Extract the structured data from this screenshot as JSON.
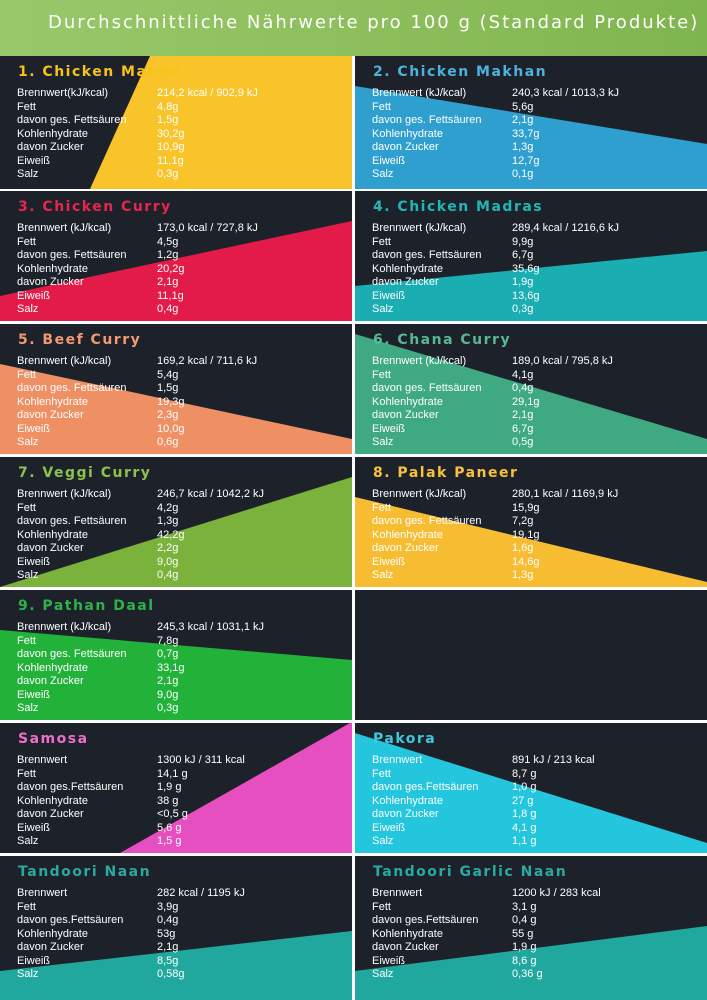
{
  "header": {
    "title": "Durchschnittliche Nährwerte pro 100 g  (Standard Produkte)",
    "color": "#8dbf5c"
  },
  "panels": [
    {
      "title": "1. Chicken Mango",
      "title_color": "#f6c21c",
      "accent_color": "#f8c42a",
      "rows": [
        {
          "label": "Brennwert(kJ/kcal)",
          "value": "214,2 kcal / 902,9 kJ"
        },
        {
          "label": "Fett",
          "value": "4,8g"
        },
        {
          "label": "davon ges. Fettsäuren",
          "value": "1,5g"
        },
        {
          "label": "Kohlenhydrate",
          "value": "30,2g"
        },
        {
          "label": "davon Zucker",
          "value": "10,9g"
        },
        {
          "label": "Eiweiß",
          "value": "11,1g"
        },
        {
          "label": "Salz",
          "value": "0,3g"
        }
      ]
    },
    {
      "title": "2. Chicken Makhan",
      "title_color": "#4eb3dc",
      "accent_color": "#2e9fcf",
      "rows": [
        {
          "label": "Brennwert (kJ/kcal)",
          "value": "240,3 kcal / 1013,3 kJ"
        },
        {
          "label": "Fett",
          "value": "5,6g"
        },
        {
          "label": "davon ges. Fettsäuren",
          "value": "2,1g"
        },
        {
          "label": "Kohlenhydrate",
          "value": "33,7g"
        },
        {
          "label": "davon Zucker",
          "value": "1,3g"
        },
        {
          "label": "Eiweiß",
          "value": "12,7g"
        },
        {
          "label": "Salz",
          "value": "0,1g"
        }
      ]
    },
    {
      "title": "3. Chicken Curry",
      "title_color": "#e8254e",
      "accent_color": "#e31b48",
      "rows": [
        {
          "label": "Brennwert (kJ/kcal)",
          "value": "173,0 kcal / 727,8 kJ"
        },
        {
          "label": "Fett",
          "value": "4,5g"
        },
        {
          "label": "davon ges. Fettsäuren",
          "value": "1,2g"
        },
        {
          "label": "Kohlenhydrate",
          "value": "20,2g"
        },
        {
          "label": "davon Zucker",
          "value": "2,1g"
        },
        {
          "label": "Eiweiß",
          "value": "11,1g"
        },
        {
          "label": "Salz",
          "value": "0,4g"
        }
      ]
    },
    {
      "title": "4. Chicken Madras",
      "title_color": "#21b7b7",
      "accent_color": "#1aaeb2",
      "rows": [
        {
          "label": "Brennwert (kJ/kcal)",
          "value": "289,4 kcal / 1216,6 kJ"
        },
        {
          "label": "Fett",
          "value": "9,9g"
        },
        {
          "label": "davon ges. Fettsäuren",
          "value": "6,7g"
        },
        {
          "label": "Kohlenhydrate",
          "value": "35,6g"
        },
        {
          "label": "davon Zucker",
          "value": "1,9g"
        },
        {
          "label": "Eiweiß",
          "value": "13,6g"
        },
        {
          "label": "Salz",
          "value": "0,3g"
        }
      ]
    },
    {
      "title": "5. Beef Curry",
      "title_color": "#f19a72",
      "accent_color": "#ef8f64",
      "rows": [
        {
          "label": "Brennwert (kJ/kcal)",
          "value": "169,2 kcal / 711,6 kJ"
        },
        {
          "label": "Fett",
          "value": "5,4g"
        },
        {
          "label": "davon ges. Fettsäuren",
          "value": "1,5g"
        },
        {
          "label": "Kohlenhydrate",
          "value": "19,3g"
        },
        {
          "label": "davon Zucker",
          "value": "2,3g"
        },
        {
          "label": "Eiweiß",
          "value": "10,0g"
        },
        {
          "label": "Salz",
          "value": "0,6g"
        }
      ]
    },
    {
      "title": "6. Chana Curry",
      "title_color": "#58b895",
      "accent_color": "#3faa82",
      "rows": [
        {
          "label": "Brennwert (kJ/kcal)",
          "value": "189,0 kcal / 795,8 kJ"
        },
        {
          "label": "Fett",
          "value": "4,1g"
        },
        {
          "label": "davon ges. Fettsäuren",
          "value": "0,4g"
        },
        {
          "label": "Kohlenhydrate",
          "value": "29,1g"
        },
        {
          "label": "davon Zucker",
          "value": "2,1g"
        },
        {
          "label": "Eiweiß",
          "value": "6,7g"
        },
        {
          "label": "Salz",
          "value": "0,5g"
        }
      ]
    },
    {
      "title": "7. Veggi Curry",
      "title_color": "#8cc24d",
      "accent_color": "#7ab23c",
      "rows": [
        {
          "label": "Brennwert (kJ/kcal)",
          "value": "246,7 kcal / 1042,2 kJ"
        },
        {
          "label": "Fett",
          "value": "4,2g"
        },
        {
          "label": "davon ges. Fettsäuren",
          "value": "1,3g"
        },
        {
          "label": "Kohlenhydrate",
          "value": "42,2g"
        },
        {
          "label": "davon Zucker",
          "value": "2,2g"
        },
        {
          "label": "Eiweiß",
          "value": "9,0g"
        },
        {
          "label": "Salz",
          "value": "0,4g"
        }
      ]
    },
    {
      "title": "8. Palak Paneer",
      "title_color": "#f8c23a",
      "accent_color": "#f7bd32",
      "rows": [
        {
          "label": "Brennwert (kJ/kcal)",
          "value": "280,1 kcal / 1169,9 kJ"
        },
        {
          "label": "Fett",
          "value": "15,9g"
        },
        {
          "label": "davon ges. Fettsäuren",
          "value": "7,2g"
        },
        {
          "label": "Kohlenhydrate",
          "value": "19,1g"
        },
        {
          "label": "davon Zucker",
          "value": "1,6g"
        },
        {
          "label": "Eiweiß",
          "value": "14,6g"
        },
        {
          "label": "Salz",
          "value": "1,3g"
        }
      ]
    },
    {
      "title": "9. Pathan Daal",
      "title_color": "#2bb34a",
      "accent_color": "#22b23a",
      "rows": [
        {
          "label": "Brennwert (kJ/kcal)",
          "value": "245,3 kcal / 1031,1 kJ"
        },
        {
          "label": "Fett",
          "value": "7,8g"
        },
        {
          "label": "davon ges. Fettsäuren",
          "value": "0,7g"
        },
        {
          "label": "Kohlenhydrate",
          "value": "33,1g"
        },
        {
          "label": "davon Zucker",
          "value": "2,1g"
        },
        {
          "label": "Eiweiß",
          "value": "9,0g"
        },
        {
          "label": "Salz",
          "value": "0,3g"
        }
      ]
    },
    {
      "title": "",
      "title_color": "#ffffff",
      "accent_color": "#1d212a",
      "rows": []
    },
    {
      "title": "Samosa",
      "title_color": "#ee6fc8",
      "accent_color": "#e64fbf",
      "rows": [
        {
          "label": "Brennwert",
          "value": "1300 kJ / 311 kcal"
        },
        {
          "label": "Fett",
          "value": "14,1 g"
        },
        {
          "label": "davon ges.Fettsäuren",
          "value": "1,9 g"
        },
        {
          "label": "Kohlenhydrate",
          "value": "38 g"
        },
        {
          "label": "davon Zucker",
          "value": "<0,5 g"
        },
        {
          "label": "Eiweiß",
          "value": "5,6 g"
        },
        {
          "label": "Salz",
          "value": "1,5 g"
        }
      ]
    },
    {
      "title": "Pakora",
      "title_color": "#40c7dc",
      "accent_color": "#23c6dc",
      "rows": [
        {
          "label": "Brennwert",
          "value": "891 kJ / 213 kcal"
        },
        {
          "label": "Fett",
          "value": "8,7 g"
        },
        {
          "label": "davon ges.Fettsäuren",
          "value": "1,0 g"
        },
        {
          "label": "Kohlenhydrate",
          "value": "27 g"
        },
        {
          "label": "davon Zucker",
          "value": "1,8 g"
        },
        {
          "label": "Eiweiß",
          "value": "4,1 g"
        },
        {
          "label": "Salz",
          "value": "1,1 g"
        }
      ]
    },
    {
      "title": "Tandoori Naan",
      "title_color": "#2aa9a1",
      "accent_color": "#21a89e",
      "rows": [
        {
          "label": "Brennwert",
          "value": "282 kcal / 1195 kJ"
        },
        {
          "label": "Fett",
          "value": "3,9g"
        },
        {
          "label": "davon ges.Fettsäuren",
          "value": "0,4g"
        },
        {
          "label": "Kohlenhydrate",
          "value": "53g"
        },
        {
          "label": "davon Zucker",
          "value": "2,1g"
        },
        {
          "label": "Eiweiß",
          "value": "8,5g"
        },
        {
          "label": "Salz",
          "value": "0,58g"
        }
      ]
    },
    {
      "title": "Tandoori Garlic Naan",
      "title_color": "#2aa9a1",
      "accent_color": "#21a89e",
      "rows": [
        {
          "label": "Brennwert",
          "value": "1200 kJ / 283 kcal"
        },
        {
          "label": "Fett",
          "value": "3,1 g"
        },
        {
          "label": "davon ges.Fettsäuren",
          "value": "0,4 g"
        },
        {
          "label": "Kohlenhydrate",
          "value": "55 g"
        },
        {
          "label": "davon Zucker",
          "value": "1,9 g"
        },
        {
          "label": "Eiweiß",
          "value": "8,6 g"
        },
        {
          "label": "Salz",
          "value": "0,36 g"
        }
      ]
    }
  ]
}
